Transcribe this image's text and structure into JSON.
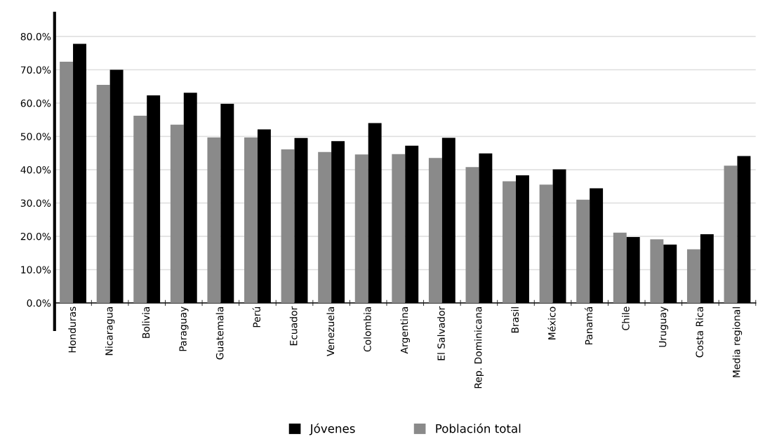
{
  "chart_data": {
    "type": "bar",
    "categories": [
      "Honduras",
      "Nicaragua",
      "Bolivia",
      "Paraguay",
      "Guatemala",
      "Perú",
      "Ecuador",
      "Venezuela",
      "Colombia",
      "Argentina",
      "El Salvador",
      "Rep. Dominicana",
      "Brasil",
      "México",
      "Panamá",
      "Chile",
      "Uruguay",
      "Costa Rica",
      "Media regional"
    ],
    "series": [
      {
        "name": "Población total",
        "color": "#8a8a8a",
        "values": [
          72.4,
          65.5,
          56.2,
          53.5,
          49.7,
          49.7,
          46.1,
          45.3,
          44.6,
          44.7,
          43.5,
          40.8,
          36.5,
          35.5,
          31.0,
          21.1,
          19.1,
          16.1,
          41.2
        ]
      },
      {
        "name": "Jóvenes",
        "color": "#000000",
        "values": [
          77.8,
          70.0,
          62.3,
          63.1,
          59.8,
          52.1,
          49.5,
          48.6,
          54.0,
          47.2,
          49.6,
          44.9,
          38.3,
          40.1,
          34.4,
          19.8,
          17.5,
          20.6,
          44.1
        ]
      }
    ],
    "ylim": [
      0,
      87
    ],
    "yticks": [
      {
        "value": 0,
        "label": "0.0%"
      },
      {
        "value": 10,
        "label": "10.0%"
      },
      {
        "value": 20,
        "label": "20.0%"
      },
      {
        "value": 30,
        "label": "30.0%"
      },
      {
        "value": 40,
        "label": "40.0%"
      },
      {
        "value": 50,
        "label": "50.0%"
      },
      {
        "value": 60,
        "label": "60.0%"
      },
      {
        "value": 70,
        "label": "70.0%"
      },
      {
        "value": 80,
        "label": "80.0%"
      }
    ],
    "grid": "y",
    "legend": "bottom"
  }
}
